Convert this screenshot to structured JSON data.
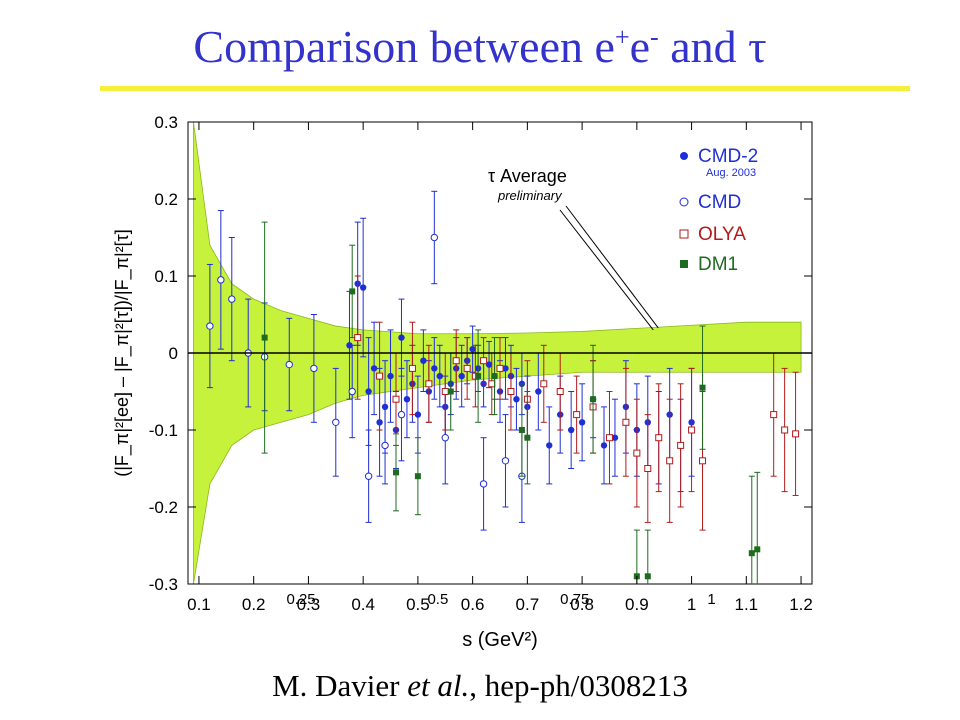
{
  "slide": {
    "title_main": "Comparison between e",
    "title_sup1": "+",
    "title_mid": "e",
    "title_sup2": "-",
    "title_end": " and τ",
    "citation_author": "M. Davier ",
    "citation_etal": "et al.",
    "citation_ref": ", hep-ph/0308213",
    "accent_color": "#f5ee3a",
    "title_color": "#3333cc"
  },
  "chart_data": {
    "type": "scatter",
    "xlabel": "s (GeV²)",
    "ylabel": "(|F_π|²[ee] – |F_π|²[τ])/|F_π|²[τ]",
    "xlim": [
      0.08,
      1.22
    ],
    "ylim": [
      -0.3,
      0.3
    ],
    "xticks": [
      "0.1",
      "0.2",
      "0.3",
      "0.4",
      "0.5",
      "0.6",
      "0.7",
      "0.8",
      "0.9",
      "1",
      "1.1",
      "1.2"
    ],
    "yticks": [
      "-0.3",
      "-0.2",
      "-0.1",
      "0",
      "0.1",
      "0.2",
      "0.3"
    ],
    "secondary_xticks": [
      "0.25",
      "0.5",
      "0.75",
      "1"
    ],
    "annotation": {
      "text": "τ Average",
      "subtext": "preliminary",
      "arrow_to_x": 0.93,
      "arrow_to_y": 0.03
    },
    "band": {
      "name": "τ Average",
      "color": "#c6f23c",
      "x": [
        0.09,
        0.12,
        0.16,
        0.2,
        0.25,
        0.3,
        0.35,
        0.4,
        0.5,
        0.6,
        0.7,
        0.8,
        0.9,
        1.0,
        1.1,
        1.2
      ],
      "upper": [
        0.3,
        0.14,
        0.09,
        0.07,
        0.055,
        0.045,
        0.035,
        0.03,
        0.025,
        0.025,
        0.026,
        0.028,
        0.032,
        0.036,
        0.04,
        0.04
      ],
      "lower": [
        -0.3,
        -0.17,
        -0.12,
        -0.1,
        -0.09,
        -0.08,
        -0.065,
        -0.055,
        -0.045,
        -0.035,
        -0.03,
        -0.025,
        -0.025,
        -0.025,
        -0.025,
        -0.025
      ]
    },
    "legend": {
      "position": "top-right",
      "entries": [
        {
          "name": "CMD-2",
          "sub": "Aug. 2003",
          "color": "#1f2fd6",
          "marker": "filled-circle"
        },
        {
          "name": "CMD",
          "sub": "",
          "color": "#1f2fd6",
          "marker": "open-circle"
        },
        {
          "name": "OLYA",
          "sub": "",
          "color": "#b21b1b",
          "marker": "open-square"
        },
        {
          "name": "DM1",
          "sub": "",
          "color": "#1f6b1f",
          "marker": "filled-square"
        }
      ]
    },
    "series": [
      {
        "name": "CMD-2",
        "color": "#1f2fd6",
        "marker": "filled-circle",
        "points": [
          [
            0.375,
            0.01,
            0.07
          ],
          [
            0.39,
            0.09,
            0.08
          ],
          [
            0.4,
            0.085,
            0.09
          ],
          [
            0.41,
            -0.05,
            0.07
          ],
          [
            0.42,
            -0.02,
            0.06
          ],
          [
            0.43,
            -0.09,
            0.07
          ],
          [
            0.44,
            -0.07,
            0.06
          ],
          [
            0.45,
            -0.03,
            0.06
          ],
          [
            0.46,
            -0.1,
            0.05
          ],
          [
            0.47,
            0.02,
            0.05
          ],
          [
            0.48,
            -0.06,
            0.05
          ],
          [
            0.49,
            -0.04,
            0.05
          ],
          [
            0.5,
            -0.08,
            0.05
          ],
          [
            0.51,
            -0.01,
            0.04
          ],
          [
            0.52,
            -0.05,
            0.04
          ],
          [
            0.53,
            -0.02,
            0.04
          ],
          [
            0.54,
            -0.03,
            0.04
          ],
          [
            0.55,
            -0.07,
            0.04
          ],
          [
            0.56,
            -0.04,
            0.04
          ],
          [
            0.57,
            -0.02,
            0.04
          ],
          [
            0.58,
            -0.03,
            0.04
          ],
          [
            0.59,
            -0.01,
            0.03
          ],
          [
            0.6,
            0.005,
            0.03
          ],
          [
            0.61,
            -0.02,
            0.03
          ],
          [
            0.62,
            -0.04,
            0.03
          ],
          [
            0.63,
            -0.015,
            0.03
          ],
          [
            0.64,
            -0.03,
            0.03
          ],
          [
            0.65,
            -0.05,
            0.04
          ],
          [
            0.66,
            -0.02,
            0.04
          ],
          [
            0.67,
            -0.03,
            0.04
          ],
          [
            0.68,
            -0.06,
            0.04
          ],
          [
            0.69,
            -0.04,
            0.04
          ],
          [
            0.7,
            -0.07,
            0.04
          ],
          [
            0.72,
            -0.05,
            0.05
          ],
          [
            0.74,
            -0.12,
            0.05
          ],
          [
            0.76,
            -0.08,
            0.05
          ],
          [
            0.78,
            -0.1,
            0.05
          ],
          [
            0.8,
            -0.09,
            0.05
          ],
          [
            0.82,
            -0.06,
            0.05
          ],
          [
            0.84,
            -0.12,
            0.05
          ],
          [
            0.86,
            -0.11,
            0.05
          ],
          [
            0.88,
            -0.07,
            0.06
          ],
          [
            0.9,
            -0.1,
            0.06
          ],
          [
            0.92,
            -0.09,
            0.06
          ],
          [
            0.94,
            -0.11,
            0.06
          ],
          [
            0.96,
            -0.08,
            0.06
          ],
          [
            0.98,
            -0.12,
            0.06
          ],
          [
            1.0,
            -0.09,
            0.07
          ]
        ]
      },
      {
        "name": "CMD",
        "color": "#1f2fd6",
        "marker": "open-circle",
        "points": [
          [
            0.12,
            0.035,
            0.08
          ],
          [
            0.14,
            0.095,
            0.09
          ],
          [
            0.16,
            0.07,
            0.08
          ],
          [
            0.19,
            0.0,
            0.07
          ],
          [
            0.22,
            -0.005,
            0.07
          ],
          [
            0.265,
            -0.015,
            0.06
          ],
          [
            0.31,
            -0.02,
            0.07
          ],
          [
            0.35,
            -0.09,
            0.07
          ],
          [
            0.38,
            -0.05,
            0.06
          ],
          [
            0.41,
            -0.16,
            0.06
          ],
          [
            0.44,
            -0.12,
            0.05
          ],
          [
            0.47,
            -0.08,
            0.06
          ],
          [
            0.53,
            0.15,
            0.06
          ],
          [
            0.55,
            -0.11,
            0.06
          ],
          [
            0.62,
            -0.17,
            0.06
          ],
          [
            0.66,
            -0.14,
            0.06
          ],
          [
            0.69,
            -0.16,
            0.06
          ]
        ]
      },
      {
        "name": "OLYA",
        "color": "#b21b1b",
        "marker": "open-square",
        "points": [
          [
            0.39,
            0.02,
            0.08
          ],
          [
            0.43,
            -0.03,
            0.07
          ],
          [
            0.46,
            -0.06,
            0.06
          ],
          [
            0.49,
            -0.02,
            0.06
          ],
          [
            0.52,
            -0.04,
            0.05
          ],
          [
            0.55,
            -0.05,
            0.05
          ],
          [
            0.57,
            -0.01,
            0.04
          ],
          [
            0.59,
            -0.02,
            0.04
          ],
          [
            0.605,
            -0.03,
            0.04
          ],
          [
            0.62,
            -0.01,
            0.03
          ],
          [
            0.635,
            -0.04,
            0.04
          ],
          [
            0.65,
            -0.02,
            0.04
          ],
          [
            0.67,
            -0.05,
            0.05
          ],
          [
            0.7,
            -0.06,
            0.05
          ],
          [
            0.73,
            -0.04,
            0.05
          ],
          [
            0.76,
            -0.05,
            0.05
          ],
          [
            0.79,
            -0.08,
            0.05
          ],
          [
            0.82,
            -0.07,
            0.06
          ],
          [
            0.85,
            -0.11,
            0.06
          ],
          [
            0.88,
            -0.09,
            0.07
          ],
          [
            0.9,
            -0.13,
            0.07
          ],
          [
            0.92,
            -0.15,
            0.07
          ],
          [
            0.94,
            -0.11,
            0.07
          ],
          [
            0.96,
            -0.14,
            0.08
          ],
          [
            0.98,
            -0.12,
            0.08
          ],
          [
            1.0,
            -0.1,
            0.08
          ],
          [
            1.02,
            -0.14,
            0.09
          ],
          [
            1.15,
            -0.08,
            0.08
          ],
          [
            1.17,
            -0.1,
            0.08
          ],
          [
            1.19,
            -0.105,
            0.08
          ]
        ]
      },
      {
        "name": "DM1",
        "color": "#1f6b1f",
        "marker": "filled-square",
        "points": [
          [
            0.22,
            0.02,
            0.15
          ],
          [
            0.38,
            0.08,
            0.06
          ],
          [
            0.46,
            -0.155,
            0.05
          ],
          [
            0.5,
            -0.16,
            0.05
          ],
          [
            0.56,
            -0.05,
            0.05
          ],
          [
            0.61,
            -0.03,
            0.06
          ],
          [
            0.64,
            -0.03,
            0.05
          ],
          [
            0.69,
            -0.1,
            0.06
          ],
          [
            0.7,
            -0.11,
            0.06
          ],
          [
            0.82,
            -0.06,
            0.07
          ],
          [
            0.9,
            -0.29,
            0.06
          ],
          [
            0.92,
            -0.29,
            0.06
          ],
          [
            1.02,
            -0.045,
            0.08
          ],
          [
            1.11,
            -0.26,
            0.1
          ],
          [
            1.12,
            -0.255,
            0.1
          ]
        ]
      }
    ]
  }
}
